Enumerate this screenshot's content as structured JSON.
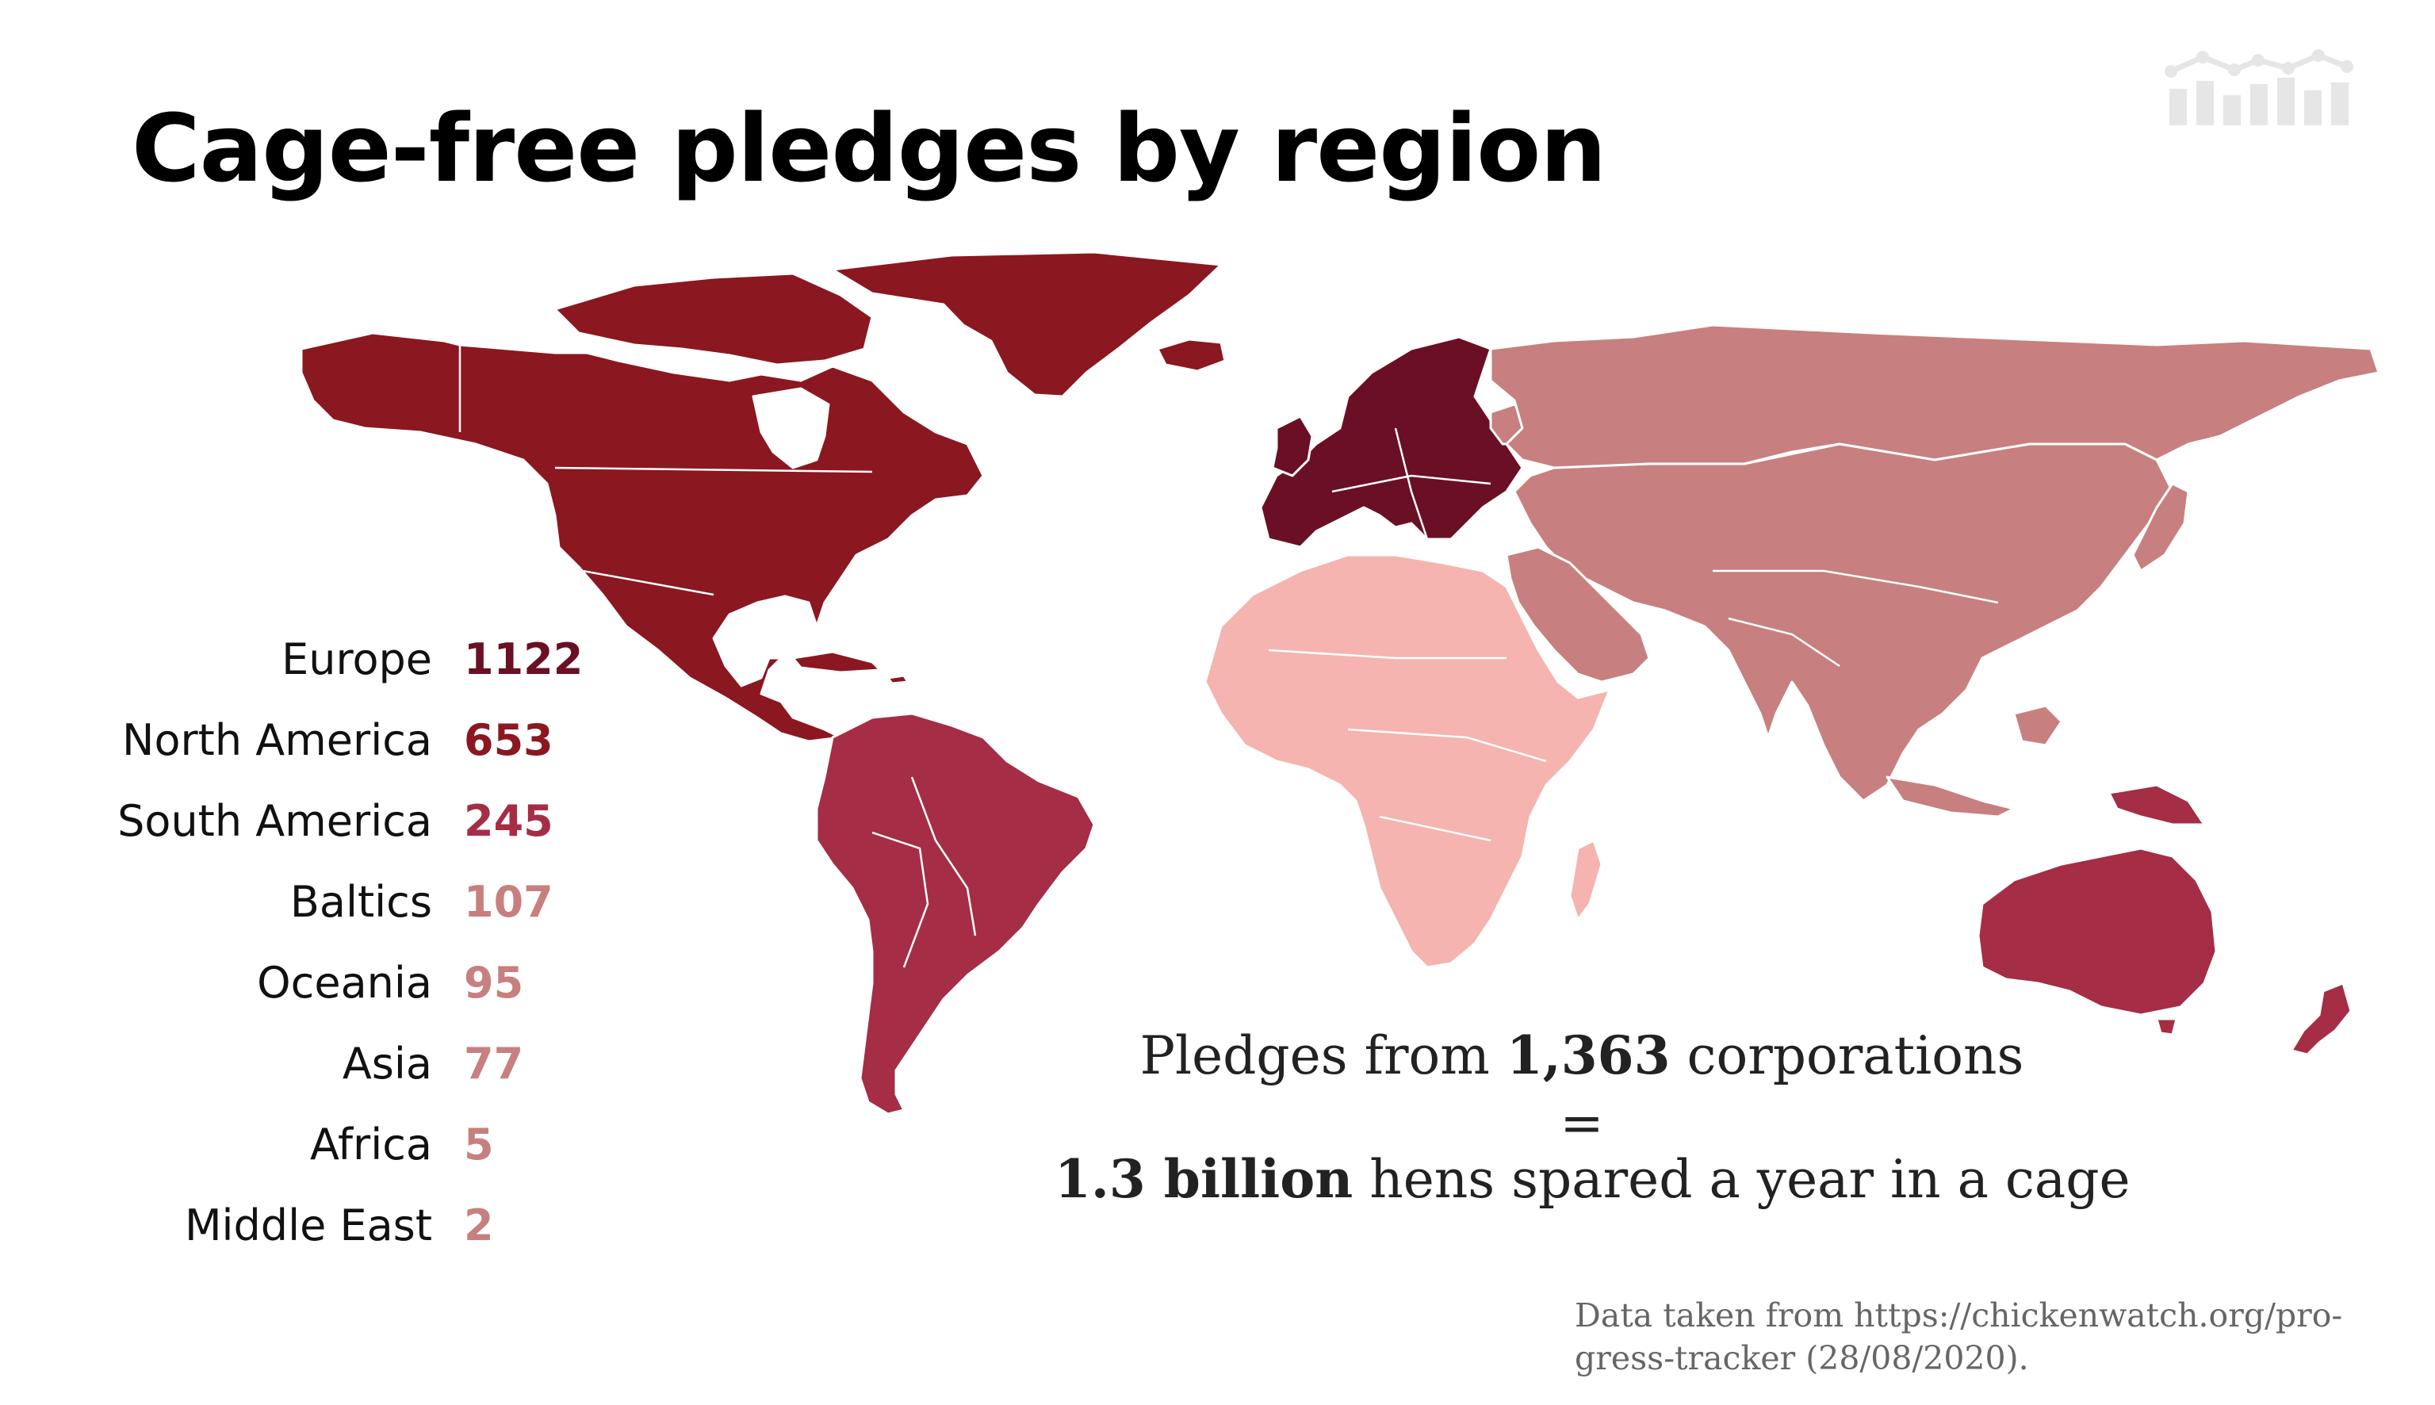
{
  "title": "Cage-free pledges by region",
  "colors": {
    "europe": "#6b0f24",
    "north_america": "#8b1721",
    "south_america": "#a52d45",
    "oceania": "#a52d45",
    "asia": "#c7807f",
    "middle_east": "#c7807f",
    "africa": "#f5b4b0",
    "border": "#ffffff"
  },
  "legend": [
    {
      "region": "Europe",
      "value": "1122",
      "color": "#6b0f24"
    },
    {
      "region": "North America",
      "value": "653",
      "color": "#8b1721"
    },
    {
      "region": "South America",
      "value": "245",
      "color": "#a52d45"
    },
    {
      "region": "Baltics",
      "value": "107",
      "color": "#c7807f"
    },
    {
      "region": "Oceania",
      "value": "95",
      "color": "#c7807f"
    },
    {
      "region": "Asia",
      "value": "77",
      "color": "#c7807f"
    },
    {
      "region": "Africa",
      "value": "5",
      "color": "#c7807f"
    },
    {
      "region": "Middle East",
      "value": "2",
      "color": "#c7807f"
    }
  ],
  "summary": {
    "line1_prefix": "Pledges from ",
    "corporations": "1,363",
    "line1_suffix": " corporations",
    "equals": "=",
    "hens": "1.3 billion",
    "line3_suffix": " hens spared a year in a cage"
  },
  "source": {
    "line1": "Data taken from https://chickenwatch.org/pro-",
    "line2": "gress-tracker (28/08/2020)."
  },
  "logo_icon": "bar-chart-logo-icon"
}
